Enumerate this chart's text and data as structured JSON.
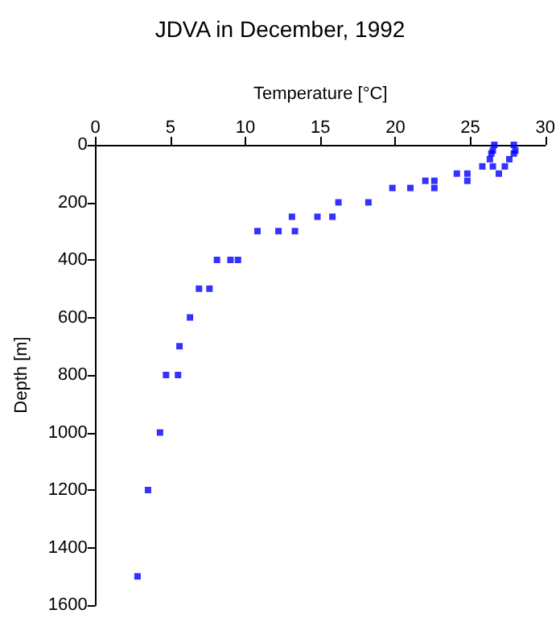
{
  "chart_data": {
    "type": "scatter",
    "title": "JDVA in December, 1992",
    "xlabel": "Temperature [°C]",
    "ylabel": "Depth [m]",
    "x": [
      26.6,
      26.5,
      26.4,
      26.3,
      27.9,
      28.0,
      27.9,
      27.6,
      25.8,
      26.5,
      27.3,
      24.1,
      24.8,
      26.9,
      24.8,
      22.0,
      22.6,
      19.8,
      21.0,
      22.6,
      16.2,
      18.2,
      13.1,
      14.8,
      15.8,
      10.8,
      12.2,
      13.3,
      8.1,
      9.0,
      9.5,
      6.9,
      7.6,
      6.3,
      5.6,
      4.7,
      5.5,
      4.3,
      3.5,
      2.8
    ],
    "values": [
      0,
      20,
      30,
      50,
      0,
      20,
      30,
      50,
      75,
      75,
      75,
      100,
      100,
      100,
      125,
      125,
      125,
      150,
      150,
      150,
      200,
      200,
      250,
      250,
      250,
      300,
      300,
      300,
      400,
      400,
      400,
      500,
      500,
      600,
      700,
      800,
      800,
      1000,
      1200,
      1500
    ],
    "color": "#0000ff",
    "marker": "square",
    "xlim": [
      0,
      30
    ],
    "xticks": [
      0,
      5,
      10,
      15,
      20,
      25,
      30
    ],
    "ylim": [
      1600,
      0
    ],
    "yticks": [
      0,
      200,
      400,
      600,
      800,
      1000,
      1200,
      1400,
      1600
    ],
    "grid": false
  }
}
